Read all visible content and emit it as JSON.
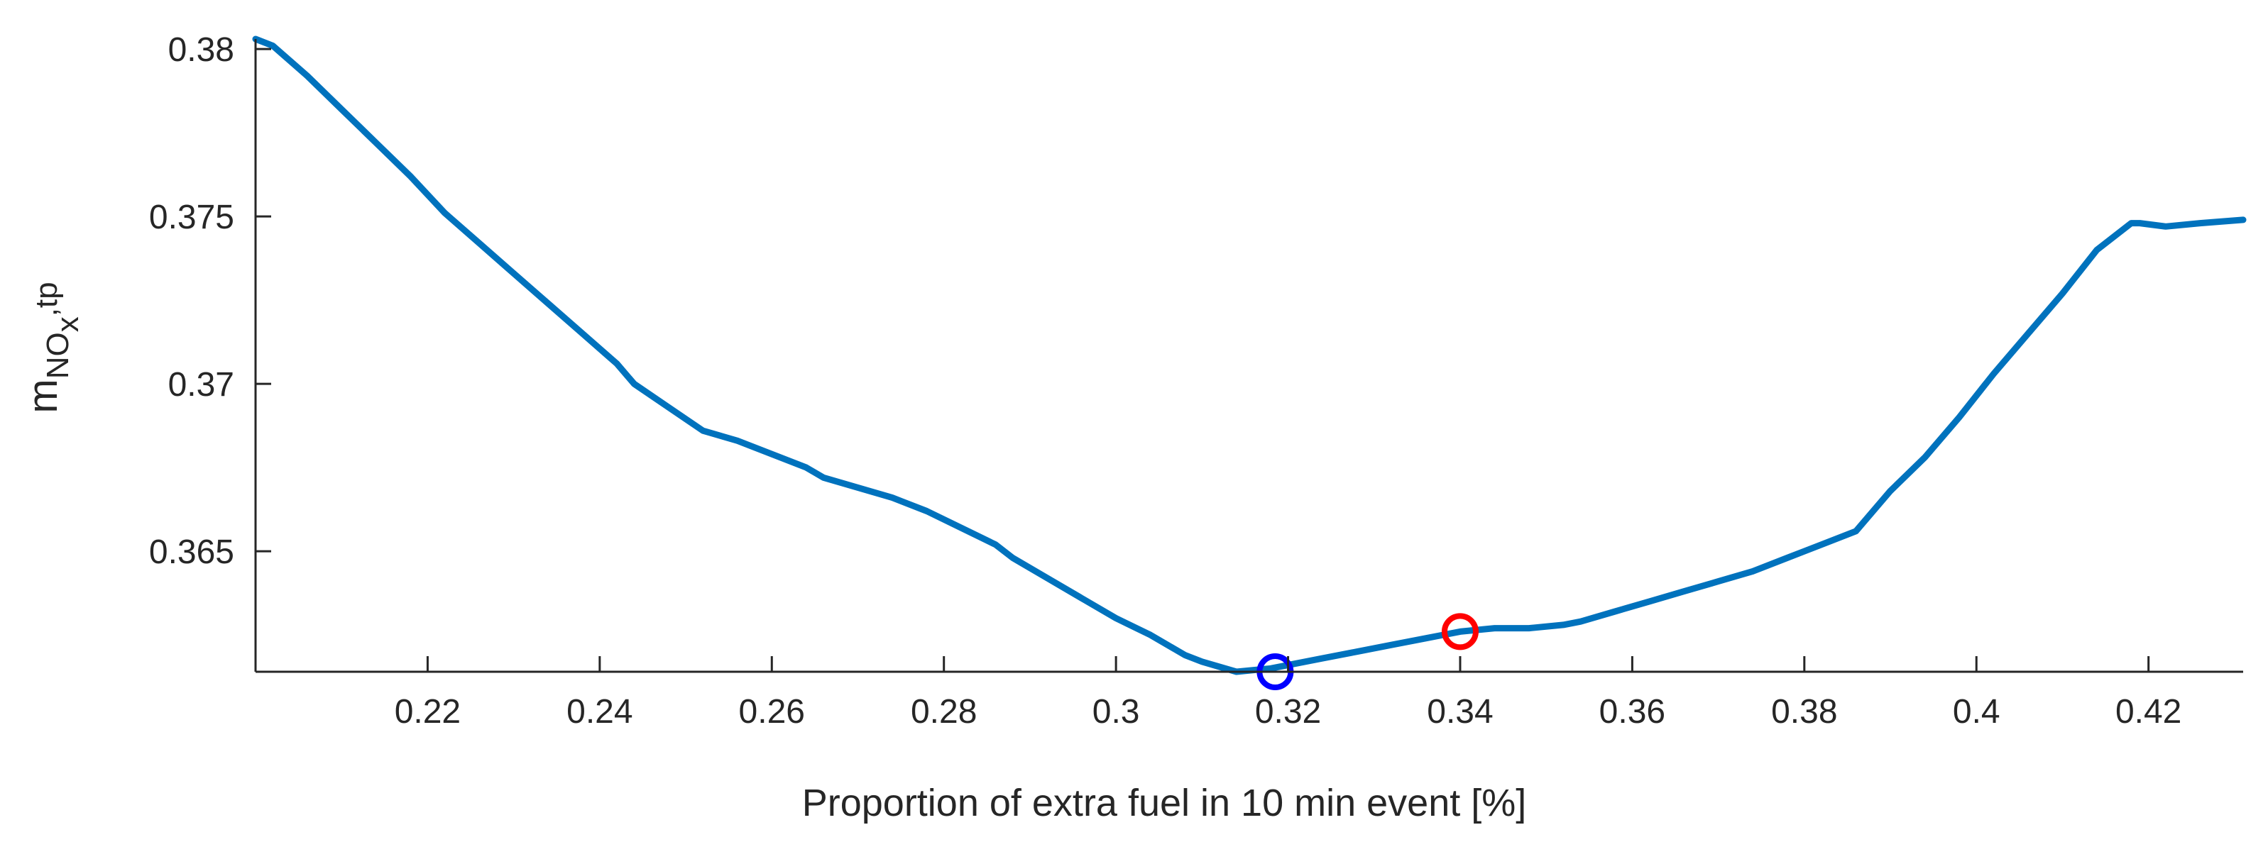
{
  "chart_data": {
    "type": "line",
    "title": "",
    "xlabel": "Proportion of extra fuel in 10 min event [%]",
    "ylabel": {
      "base": "m",
      "sub_main": "NO",
      "sub_sub": "x",
      "suffix": ",tp"
    },
    "xlim": [
      0.2,
      0.431
    ],
    "ylim": [
      0.3614,
      0.3803
    ],
    "x_ticks": [
      0.22,
      0.24,
      0.26,
      0.28,
      0.3,
      0.32,
      0.34,
      0.36,
      0.38,
      0.4,
      0.42
    ],
    "x_tick_labels": [
      "0.22",
      "0.24",
      "0.26",
      "0.28",
      "0.3",
      "0.32",
      "0.34",
      "0.36",
      "0.38",
      "0.4",
      "0.42"
    ],
    "y_ticks": [
      0.365,
      0.37,
      0.375,
      0.38
    ],
    "y_tick_labels": [
      "0.365",
      "0.37",
      "0.375",
      "0.38"
    ],
    "grid": false,
    "series": [
      {
        "name": "mNOx,tp",
        "color": "#0072BD",
        "x": [
          0.2,
          0.202,
          0.206,
          0.21,
          0.214,
          0.218,
          0.222,
          0.226,
          0.23,
          0.234,
          0.238,
          0.242,
          0.244,
          0.248,
          0.252,
          0.256,
          0.26,
          0.264,
          0.266,
          0.27,
          0.274,
          0.278,
          0.282,
          0.286,
          0.288,
          0.292,
          0.296,
          0.3,
          0.304,
          0.308,
          0.31,
          0.314,
          0.318,
          0.32,
          0.324,
          0.328,
          0.332,
          0.336,
          0.34,
          0.344,
          0.348,
          0.352,
          0.354,
          0.358,
          0.362,
          0.366,
          0.37,
          0.374,
          0.378,
          0.382,
          0.386,
          0.39,
          0.394,
          0.398,
          0.402,
          0.406,
          0.41,
          0.414,
          0.418,
          0.419,
          0.422,
          0.426,
          0.431
        ],
        "y": [
          0.3803,
          0.3801,
          0.3792,
          0.3782,
          0.3772,
          0.3762,
          0.3751,
          0.3742,
          0.3733,
          0.3724,
          0.3715,
          0.3706,
          0.37,
          0.3693,
          0.3686,
          0.3683,
          0.3679,
          0.3675,
          0.3672,
          0.3669,
          0.3666,
          0.3662,
          0.3657,
          0.3652,
          0.3648,
          0.3642,
          0.3636,
          0.363,
          0.3625,
          0.3619,
          0.3617,
          0.3614,
          0.3615,
          0.3616,
          0.3618,
          0.362,
          0.3622,
          0.3624,
          0.3626,
          0.3627,
          0.3627,
          0.3628,
          0.3629,
          0.3632,
          0.3635,
          0.3638,
          0.3641,
          0.3644,
          0.3648,
          0.3652,
          0.3656,
          0.3668,
          0.3678,
          0.369,
          0.3703,
          0.3715,
          0.3727,
          0.374,
          0.3748,
          0.3748,
          0.3747,
          0.3748,
          0.3749
        ]
      }
    ],
    "markers": [
      {
        "name": "minimum",
        "x": 0.3185,
        "y": 0.3614,
        "color": "#0000FF",
        "shape": "circle-open"
      },
      {
        "name": "selected",
        "x": 0.34,
        "y": 0.3626,
        "color": "#FF0000",
        "shape": "circle-open"
      }
    ]
  }
}
